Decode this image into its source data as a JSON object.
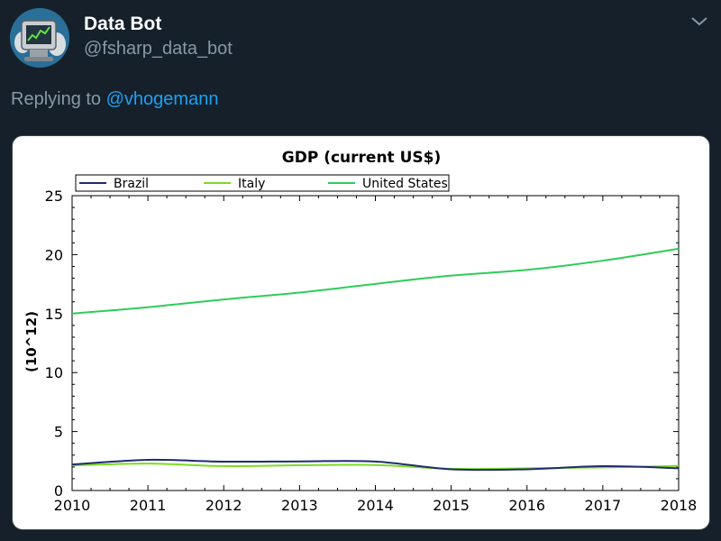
{
  "tweet": {
    "display_name": "Data Bot",
    "handle": "@fsharp_data_bot",
    "replying_prefix": "Replying to ",
    "replying_to": "@vhogemann",
    "icons": {
      "avatar": "robot-computer-avatar",
      "more": "chevron-down-icon"
    }
  },
  "colors": {
    "background": "#15202b",
    "name": "#ffffff",
    "muted": "#8899a6",
    "link": "#1da1f2",
    "brazil": "#1f2c6e",
    "italy": "#7ddc1f",
    "united_states": "#2ecc5a"
  },
  "chart_data": {
    "type": "line",
    "title": "GDP (current US$)",
    "xlabel": "",
    "ylabel": "(10^12)",
    "x": [
      2010,
      2011,
      2012,
      2013,
      2014,
      2015,
      2016,
      2017,
      2018
    ],
    "xlim": [
      2010,
      2018
    ],
    "ylim": [
      0,
      25
    ],
    "xticks": [
      "2010",
      "2011",
      "2012",
      "2013",
      "2014",
      "2015",
      "2016",
      "2017",
      "2018"
    ],
    "yticks": [
      "0",
      "5",
      "10",
      "15",
      "20",
      "25"
    ],
    "grid": false,
    "legend_position": "top-left",
    "series": [
      {
        "name": "Brazil",
        "color": "#1f2c6e",
        "values": [
          2.2,
          2.6,
          2.45,
          2.47,
          2.46,
          1.8,
          1.8,
          2.06,
          1.89
        ]
      },
      {
        "name": "Italy",
        "color": "#7ddc1f",
        "values": [
          2.13,
          2.28,
          2.07,
          2.14,
          2.16,
          1.84,
          1.88,
          1.96,
          2.08
        ]
      },
      {
        "name": "United States",
        "color": "#2ecc5a",
        "values": [
          15.0,
          15.54,
          16.2,
          16.78,
          17.52,
          18.22,
          18.71,
          19.49,
          20.5
        ]
      }
    ]
  }
}
